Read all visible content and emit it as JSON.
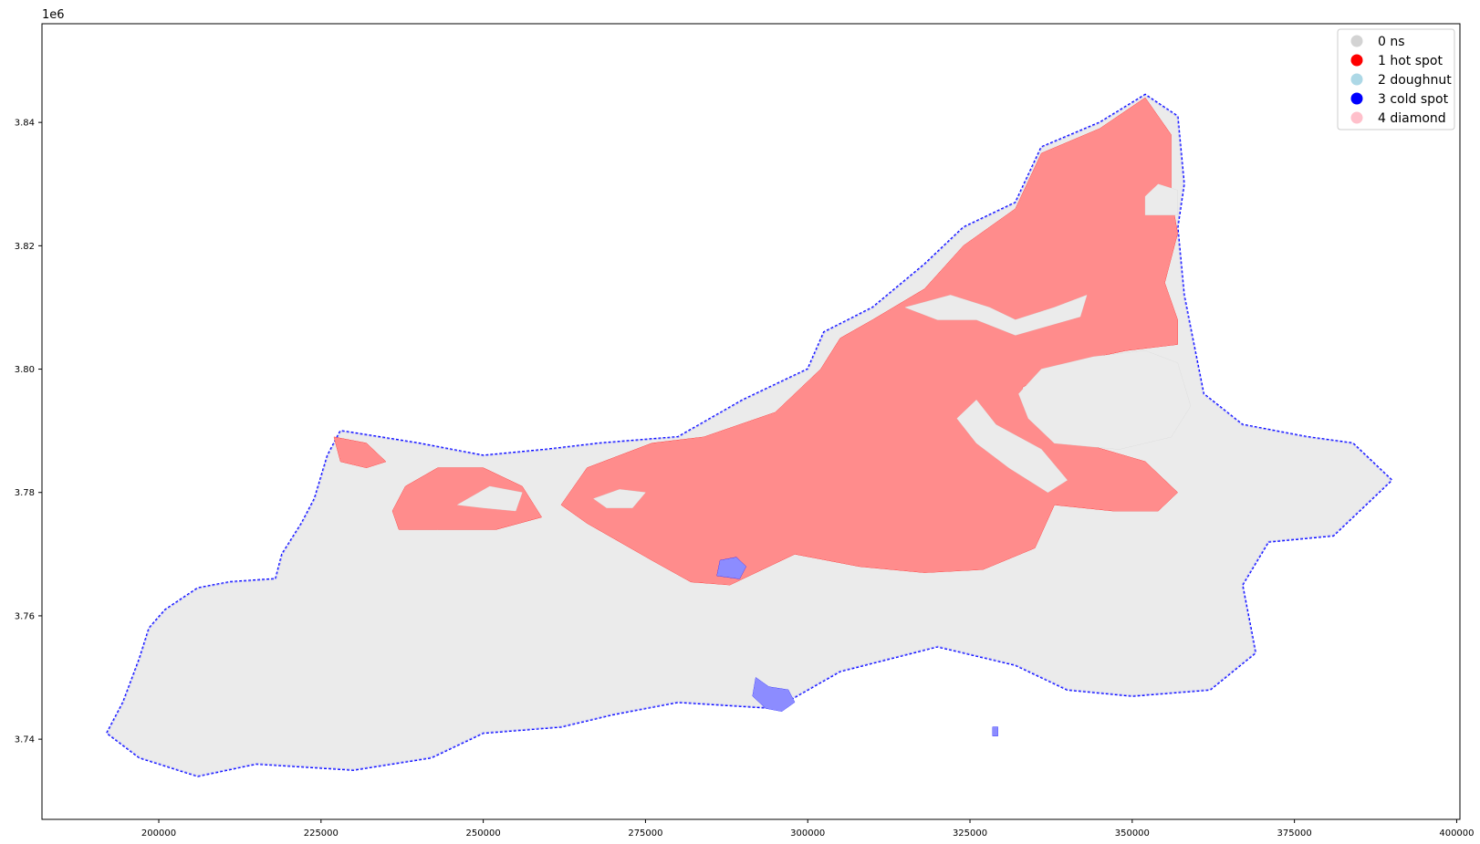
{
  "chart_data": {
    "type": "scatter",
    "title": "",
    "xlabel": "",
    "ylabel": "",
    "xlim": [
      182000,
      400500
    ],
    "ylim": [
      3727000,
      3856000
    ],
    "y_offset_label": "1e6",
    "x_ticks": [
      200000,
      225000,
      250000,
      275000,
      300000,
      325000,
      350000,
      375000,
      400000
    ],
    "x_tick_labels": [
      "200000",
      "225000",
      "250000",
      "275000",
      "300000",
      "325000",
      "350000",
      "375000",
      "400000"
    ],
    "y_ticks": [
      3740000,
      3760000,
      3780000,
      3800000,
      3820000,
      3840000
    ],
    "y_tick_labels": [
      "3.74",
      "3.76",
      "3.78",
      "3.80",
      "3.82",
      "3.84"
    ],
    "legend_position": "top-right",
    "legend": [
      {
        "label": "0 ns",
        "color": "#d3d3d3"
      },
      {
        "label": "1 hot spot",
        "color": "#ff0000"
      },
      {
        "label": "2 doughnut",
        "color": "#add8e6"
      },
      {
        "label": "3 cold spot",
        "color": "#0000ff"
      },
      {
        "label": "4 diamond",
        "color": "#ffc0cb"
      }
    ],
    "regions": [
      {
        "category": "0 ns",
        "color": "#d3d3d3",
        "points": [
          [
            192000,
            3741000
          ],
          [
            194500,
            3746000
          ],
          [
            197000,
            3753000
          ],
          [
            198500,
            3758000
          ],
          [
            201000,
            3761000
          ],
          [
            206000,
            3764500
          ],
          [
            211000,
            3765500
          ],
          [
            218000,
            3766000
          ],
          [
            219000,
            3770000
          ],
          [
            222000,
            3775000
          ],
          [
            224000,
            3779000
          ],
          [
            226000,
            3786000
          ],
          [
            228000,
            3790000
          ],
          [
            240000,
            3788000
          ],
          [
            250000,
            3786000
          ],
          [
            260000,
            3787000
          ],
          [
            268000,
            3788000
          ],
          [
            280000,
            3789000
          ],
          [
            290000,
            3795000
          ],
          [
            300000,
            3800000
          ],
          [
            302500,
            3806000
          ],
          [
            310000,
            3810000
          ],
          [
            318000,
            3817000
          ],
          [
            324000,
            3823000
          ],
          [
            332000,
            3827000
          ],
          [
            336000,
            3836000
          ],
          [
            345000,
            3840000
          ],
          [
            352000,
            3844500
          ],
          [
            357000,
            3841000
          ],
          [
            358000,
            3830000
          ],
          [
            357000,
            3823000
          ],
          [
            358000,
            3812000
          ],
          [
            361000,
            3796000
          ],
          [
            367000,
            3791000
          ],
          [
            377000,
            3789000
          ],
          [
            384000,
            3788000
          ],
          [
            390000,
            3782000
          ],
          [
            386000,
            3778000
          ],
          [
            381000,
            3773000
          ],
          [
            371000,
            3772000
          ],
          [
            367000,
            3765000
          ],
          [
            369000,
            3754000
          ],
          [
            362000,
            3748000
          ],
          [
            350000,
            3747000
          ],
          [
            340000,
            3748000
          ],
          [
            332000,
            3752000
          ],
          [
            320000,
            3755000
          ],
          [
            305000,
            3751000
          ],
          [
            295000,
            3745000
          ],
          [
            280000,
            3746000
          ],
          [
            270000,
            3744000
          ],
          [
            262000,
            3742000
          ],
          [
            250000,
            3741000
          ],
          [
            242000,
            3737000
          ],
          [
            230000,
            3735000
          ],
          [
            215000,
            3736000
          ],
          [
            206000,
            3734000
          ],
          [
            197000,
            3737000
          ]
        ]
      },
      {
        "category": "1 hot spot",
        "color": "#ff0000",
        "points": [
          [
            266000,
            3784000
          ],
          [
            276000,
            3788000
          ],
          [
            284000,
            3789000
          ],
          [
            295000,
            3793000
          ],
          [
            302000,
            3800000
          ],
          [
            305000,
            3805000
          ],
          [
            310000,
            3808000
          ],
          [
            318000,
            3813000
          ],
          [
            324000,
            3820000
          ],
          [
            332000,
            3826000
          ],
          [
            336000,
            3835000
          ],
          [
            345000,
            3839000
          ],
          [
            352000,
            3844000
          ],
          [
            356000,
            3838000
          ],
          [
            356000,
            3828000
          ],
          [
            357000,
            3822000
          ],
          [
            355000,
            3814000
          ],
          [
            357000,
            3808000
          ],
          [
            357000,
            3804000
          ],
          [
            349000,
            3803000
          ],
          [
            340000,
            3801000
          ],
          [
            333000,
            3797000
          ],
          [
            339000,
            3789000
          ],
          [
            352000,
            3785000
          ],
          [
            357000,
            3780000
          ],
          [
            354000,
            3777000
          ],
          [
            347000,
            3777000
          ],
          [
            338000,
            3778000
          ],
          [
            335000,
            3771000
          ],
          [
            327000,
            3767500
          ],
          [
            318000,
            3767000
          ],
          [
            308000,
            3768000
          ],
          [
            298000,
            3770000
          ],
          [
            288000,
            3765000
          ],
          [
            282000,
            3765500
          ],
          [
            276000,
            3769000
          ],
          [
            271000,
            3772000
          ],
          [
            266000,
            3775000
          ],
          [
            262000,
            3778000
          ]
        ]
      },
      {
        "category": "1 hot spot",
        "color": "#ff0000",
        "points": [
          [
            236000,
            3777000
          ],
          [
            238000,
            3781000
          ],
          [
            243000,
            3784000
          ],
          [
            250000,
            3784000
          ],
          [
            256000,
            3781000
          ],
          [
            259000,
            3776000
          ],
          [
            252000,
            3774000
          ],
          [
            243000,
            3774000
          ],
          [
            237000,
            3774000
          ]
        ]
      },
      {
        "category": "1 hot spot",
        "color": "#ff0000",
        "points": [
          [
            227000,
            3789000
          ],
          [
            228000,
            3785000
          ],
          [
            232000,
            3784000
          ],
          [
            235000,
            3785000
          ],
          [
            232000,
            3788000
          ]
        ]
      },
      {
        "category": "0 ns",
        "color": "#d3d3d3",
        "points": [
          [
            332500,
            3796000
          ],
          [
            336000,
            3800000
          ],
          [
            344000,
            3802000
          ],
          [
            352000,
            3803000
          ],
          [
            357000,
            3801000
          ],
          [
            359000,
            3794000
          ],
          [
            356000,
            3789000
          ],
          [
            348000,
            3787000
          ],
          [
            338000,
            3788000
          ],
          [
            334000,
            3792000
          ]
        ]
      },
      {
        "category": "0 ns",
        "color": "#d3d3d3",
        "points": [
          [
            315000,
            3810000
          ],
          [
            322000,
            3812000
          ],
          [
            328000,
            3810000
          ],
          [
            332000,
            3808000
          ],
          [
            338000,
            3810000
          ],
          [
            343000,
            3812000
          ],
          [
            342000,
            3808500
          ],
          [
            337000,
            3807000
          ],
          [
            332000,
            3805500
          ],
          [
            326000,
            3808000
          ],
          [
            320000,
            3808000
          ]
        ]
      },
      {
        "category": "0 ns",
        "color": "#d3d3d3",
        "points": [
          [
            352000,
            3828000
          ],
          [
            354000,
            3830000
          ],
          [
            357000,
            3829000
          ],
          [
            357000,
            3825000
          ],
          [
            352000,
            3825000
          ]
        ]
      },
      {
        "category": "0 ns",
        "color": "#d3d3d3",
        "points": [
          [
            323000,
            3792000
          ],
          [
            326000,
            3795000
          ],
          [
            329000,
            3791000
          ],
          [
            336000,
            3787000
          ],
          [
            340000,
            3782000
          ],
          [
            337000,
            3780000
          ],
          [
            331000,
            3784000
          ],
          [
            326000,
            3788000
          ]
        ]
      },
      {
        "category": "0 ns",
        "color": "#d3d3d3",
        "points": [
          [
            267000,
            3779000
          ],
          [
            271000,
            3780500
          ],
          [
            275000,
            3780000
          ],
          [
            273000,
            3777500
          ],
          [
            269000,
            3777500
          ]
        ]
      },
      {
        "category": "0 ns",
        "color": "#d3d3d3",
        "points": [
          [
            246000,
            3778000
          ],
          [
            250000,
            3777500
          ],
          [
            255000,
            3777000
          ],
          [
            256000,
            3780000
          ],
          [
            251000,
            3781000
          ]
        ]
      },
      {
        "category": "3 cold spot",
        "color": "#0000ff",
        "points": [
          [
            286000,
            3766500
          ],
          [
            286500,
            3769000
          ],
          [
            289000,
            3769500
          ],
          [
            290500,
            3768000
          ],
          [
            289500,
            3766000
          ]
        ]
      },
      {
        "category": "3 cold spot",
        "color": "#0000ff",
        "points": [
          [
            292000,
            3750000
          ],
          [
            294000,
            3748500
          ],
          [
            297000,
            3748000
          ],
          [
            298000,
            3746000
          ],
          [
            296000,
            3744500
          ],
          [
            293500,
            3745000
          ],
          [
            291500,
            3747000
          ]
        ]
      },
      {
        "category": "3 cold spot",
        "color": "#0000ff",
        "points": [
          [
            328500,
            3742000
          ],
          [
            329300,
            3742000
          ],
          [
            329300,
            3740500
          ],
          [
            328500,
            3740500
          ]
        ]
      }
    ]
  }
}
